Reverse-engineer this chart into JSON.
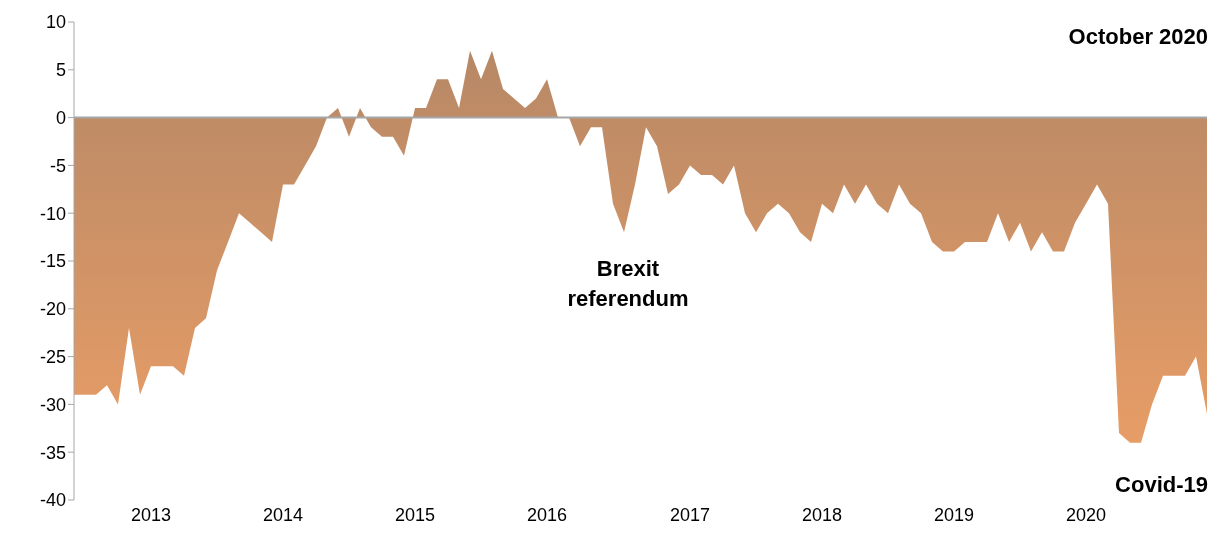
{
  "chart_data": {
    "type": "area",
    "categories": [
      null,
      null,
      null,
      null,
      null,
      null,
      null,
      "2013",
      null,
      null,
      null,
      null,
      null,
      null,
      null,
      null,
      null,
      null,
      null,
      "2014",
      null,
      null,
      null,
      null,
      null,
      null,
      null,
      null,
      null,
      null,
      null,
      "2015",
      null,
      null,
      null,
      null,
      null,
      null,
      null,
      null,
      null,
      null,
      null,
      "2016",
      null,
      null,
      null,
      null,
      null,
      null,
      null,
      null,
      null,
      null,
      null,
      null,
      "2017",
      null,
      null,
      null,
      null,
      null,
      null,
      null,
      null,
      null,
      null,
      null,
      "2018",
      null,
      null,
      null,
      null,
      null,
      null,
      null,
      null,
      null,
      null,
      null,
      "2019",
      null,
      null,
      null,
      null,
      null,
      null,
      null,
      null,
      null,
      null,
      null,
      "2020",
      null,
      null,
      null,
      null,
      null,
      null,
      null,
      null,
      null,
      null,
      null
    ],
    "series": [
      {
        "color": "#b34c00",
        "values": [
          -29,
          -29,
          -29,
          -28,
          -30,
          -22,
          -29,
          -26,
          -26,
          -26,
          -27,
          -22,
          -21,
          -16,
          -13,
          -10,
          -11,
          -12,
          -13,
          -7,
          -7,
          -5,
          -3,
          0,
          1,
          -2,
          1,
          -1,
          -2,
          -2,
          -4,
          1,
          1,
          4,
          4,
          1,
          7,
          4,
          7,
          3,
          2,
          1,
          2,
          4,
          0,
          0,
          -3,
          -1,
          -1,
          -9,
          -12,
          -7,
          -1,
          -3,
          -8,
          -7,
          -5,
          -6,
          -6,
          -7,
          -5,
          -10,
          -12,
          -10,
          -9,
          -10,
          -12,
          -13,
          -9,
          -10,
          -7,
          -9,
          -7,
          -9,
          -10,
          -7,
          -9,
          -10,
          -13,
          -14,
          -14,
          -13,
          -13,
          -13,
          -10,
          -13,
          -11,
          -14,
          -12,
          -14,
          -14,
          -11,
          -9,
          -7,
          -9,
          -33,
          -34,
          -34,
          -30,
          -27,
          -27,
          -27,
          -25,
          -31
        ]
      }
    ],
    "ylim": [
      -40,
      10
    ],
    "yticks": [
      -40,
      -35,
      -30,
      -25,
      -20,
      -15,
      -10,
      -5,
      0,
      5,
      10
    ],
    "grid": false,
    "legend": false,
    "ref_lines": [
      {
        "axis": "y",
        "value": 0,
        "color": "#a6a6a6"
      }
    ],
    "annotations": [
      "October 2020",
      "Brexit referendum",
      "Covid-19"
    ]
  }
}
